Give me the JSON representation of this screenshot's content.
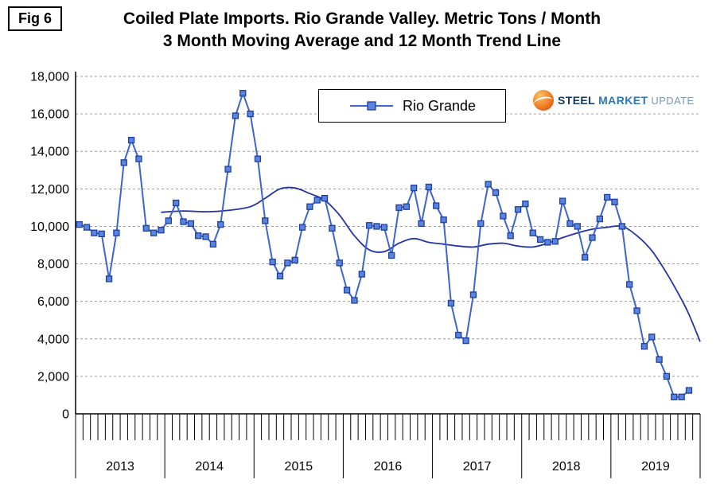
{
  "fig_label": "Fig 6",
  "title_line1": "Coiled Plate Imports. Rio Grande Valley. Metric Tons / Month",
  "title_line2": "3 Month Moving Average and 12 Month Trend Line",
  "legend": {
    "series_label": "Rio Grande"
  },
  "logo": {
    "steel": "STEEL",
    "market": "MARKET",
    "update": "UPDATE"
  },
  "chart_data": {
    "type": "line",
    "title": "Coiled Plate Imports. Rio Grande Valley. Metric Tons / Month",
    "subtitle": "3 Month Moving Average and 12 Month Trend Line",
    "xlabel": "",
    "ylabel": "",
    "x_years": [
      "2013",
      "2014",
      "2015",
      "2016",
      "2017",
      "2018",
      "2019"
    ],
    "start_month": "2013-01",
    "ylim": [
      0,
      18000
    ],
    "ytick_step": 2000,
    "yticks": [
      "0",
      "2,000",
      "4,000",
      "6,000",
      "8,000",
      "10,000",
      "12,000",
      "14,000",
      "16,000",
      "18,000"
    ],
    "grid": "horizontal-dashed",
    "legend_position": "top-center-inside",
    "series": [
      {
        "name": "Rio Grande",
        "type": "line-with-square-markers",
        "values": [
          10100,
          9950,
          9650,
          9600,
          7200,
          9650,
          13400,
          14600,
          13600,
          9900,
          9650,
          9800,
          10300,
          11250,
          10250,
          10150,
          9500,
          9450,
          9050,
          10100,
          13050,
          15900,
          17100,
          16000,
          13600,
          10300,
          8100,
          7350,
          8050,
          8200,
          9950,
          11050,
          11400,
          11500,
          9900,
          8050,
          6600,
          6050,
          7450,
          10050,
          10000,
          9950,
          8450,
          11000,
          11050,
          12050,
          10150,
          12100,
          11100,
          10350,
          5900,
          4200,
          3900,
          6350,
          10150,
          12250,
          11800,
          10550,
          9500,
          10900,
          11200,
          9650,
          9300,
          9150,
          9200,
          11350,
          10150,
          10000,
          8350,
          9400,
          10400,
          11550,
          11300,
          10000,
          6900,
          5500,
          3600,
          4100,
          2900,
          2000,
          900,
          900,
          1250
        ]
      },
      {
        "name": "12 Month Trend Line",
        "type": "smooth-line",
        "points": [
          [
            11,
            10750
          ],
          [
            14,
            10820
          ],
          [
            17,
            10780
          ],
          [
            20,
            10850
          ],
          [
            23,
            11050
          ],
          [
            25,
            11500
          ],
          [
            27,
            12000
          ],
          [
            29,
            12050
          ],
          [
            31,
            11750
          ],
          [
            33,
            11400
          ],
          [
            35,
            10600
          ],
          [
            37,
            9500
          ],
          [
            39,
            8750
          ],
          [
            41,
            8650
          ],
          [
            43,
            9100
          ],
          [
            45,
            9350
          ],
          [
            47,
            9150
          ],
          [
            49,
            9050
          ],
          [
            51,
            8950
          ],
          [
            53,
            8900
          ],
          [
            55,
            9050
          ],
          [
            57,
            9100
          ],
          [
            59,
            8950
          ],
          [
            61,
            8900
          ],
          [
            63,
            9100
          ],
          [
            65,
            9400
          ],
          [
            67,
            9650
          ],
          [
            69,
            9850
          ],
          [
            71,
            9950
          ],
          [
            73,
            10000
          ],
          [
            75,
            9500
          ],
          [
            77,
            8700
          ],
          [
            79,
            7500
          ],
          [
            81,
            6100
          ],
          [
            82,
            5300
          ],
          [
            83.5,
            3850
          ]
        ]
      }
    ],
    "colors": {
      "series": "#3f63cf",
      "marker_fill": "#5b83e0",
      "marker_stroke": "#1d3f9e",
      "trend": "#2233a8",
      "grid": "#9b9b9b",
      "axis": "#000000"
    }
  }
}
